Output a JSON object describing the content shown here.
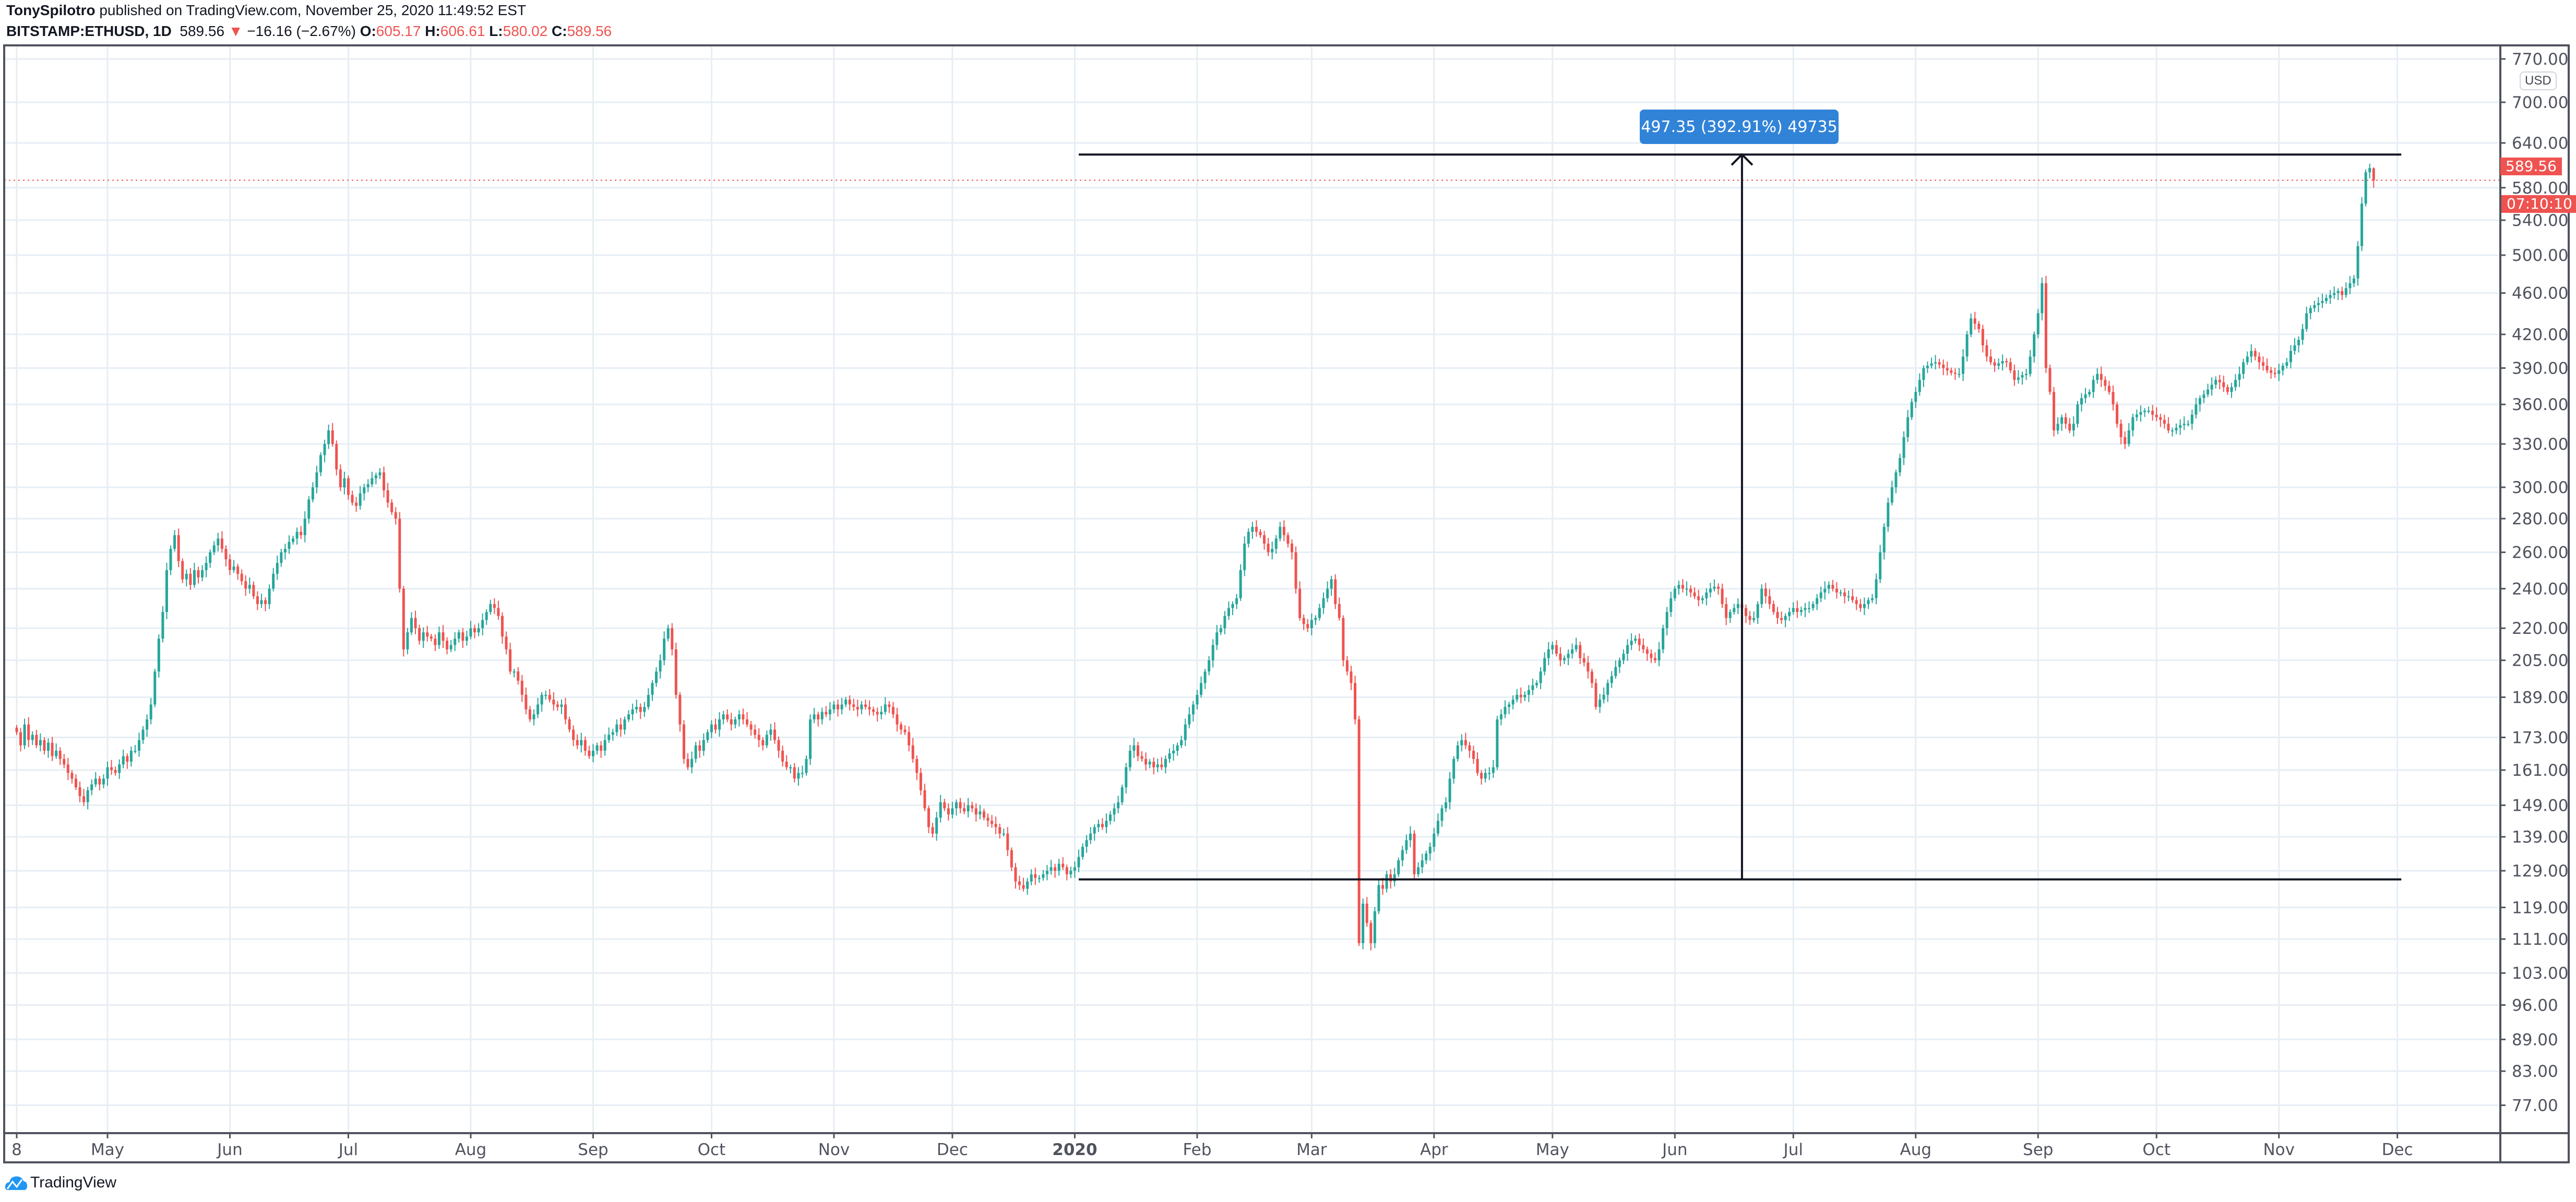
{
  "header": {
    "author": "TonySpilotro",
    "published_text": "published on TradingView.com, November 25, 2020 11:49:52 EST",
    "symbol": "BITSTAMP:ETHUSD, 1D",
    "last_price": "589.56",
    "change": "−16.16 (−2.67%)",
    "o_label": "O:",
    "o_value": "605.17",
    "h_label": "H:",
    "h_value": "606.61",
    "l_label": "L:",
    "l_value": "580.02",
    "c_label": "C:",
    "c_value": "589.56",
    "down_icon": "triangle-down-icon"
  },
  "price_axis": {
    "currency_badge": "USD",
    "last_price_tag": "589.56",
    "countdown_tag": "07:10:10"
  },
  "measure": {
    "label": "497.35 (392.91%) 49735",
    "from_price": 126.58,
    "to_price": 623.93,
    "start_date": "2020-01-02",
    "end_date": "2020-12-02",
    "arrow_date": "2020-06-18"
  },
  "footer": {
    "brand": "TradingView"
  },
  "colors": {
    "up": "#26a69a",
    "down": "#ef5350",
    "measure_label": "#3183d8",
    "grid": "#e6eef5",
    "axis": "#50535e"
  },
  "chart_data": {
    "type": "candlestick",
    "symbol": "BITSTAMP:ETHUSD",
    "interval": "1D",
    "y_scale": "log",
    "ylim": [
      72,
      790
    ],
    "grid": true,
    "start_date": "2019-04-08",
    "end_date": "2020-11-25",
    "y_ticks": [
      77,
      83,
      89,
      96,
      103,
      111,
      119,
      129,
      139,
      149,
      161,
      173,
      189,
      205,
      220,
      240,
      260,
      280,
      300,
      330,
      360,
      390,
      420,
      460,
      500,
      540,
      580,
      640,
      700,
      770
    ],
    "x_ticks": [
      {
        "label": "8",
        "date": "2019-04-08"
      },
      {
        "label": "May",
        "date": "2019-05-01"
      },
      {
        "label": "Jun",
        "date": "2019-06-01"
      },
      {
        "label": "Jul",
        "date": "2019-07-01"
      },
      {
        "label": "Aug",
        "date": "2019-08-01"
      },
      {
        "label": "Sep",
        "date": "2019-09-01"
      },
      {
        "label": "Oct",
        "date": "2019-10-01"
      },
      {
        "label": "Nov",
        "date": "2019-11-01"
      },
      {
        "label": "Dec",
        "date": "2019-12-01"
      },
      {
        "label": "2020",
        "date": "2020-01-01"
      },
      {
        "label": "Feb",
        "date": "2020-02-01"
      },
      {
        "label": "Mar",
        "date": "2020-03-01"
      },
      {
        "label": "Apr",
        "date": "2020-04-01"
      },
      {
        "label": "May",
        "date": "2020-05-01"
      },
      {
        "label": "Jun",
        "date": "2020-06-01"
      },
      {
        "label": "Jul",
        "date": "2020-07-01"
      },
      {
        "label": "Aug",
        "date": "2020-08-01"
      },
      {
        "label": "Sep",
        "date": "2020-09-01"
      },
      {
        "label": "Oct",
        "date": "2020-10-01"
      },
      {
        "label": "Nov",
        "date": "2020-11-01"
      },
      {
        "label": "Dec",
        "date": "2020-12-01"
      }
    ],
    "daily_closes": [
      175,
      170,
      178,
      172,
      174,
      170,
      172,
      168,
      171,
      166,
      168,
      165,
      163,
      160,
      158,
      155,
      152,
      150,
      154,
      156,
      158,
      156,
      158,
      162,
      161,
      160,
      163,
      166,
      164,
      168,
      168,
      172,
      176,
      180,
      186,
      200,
      215,
      228,
      250,
      262,
      270,
      255,
      245,
      248,
      242,
      250,
      246,
      250,
      254,
      260,
      264,
      268,
      262,
      256,
      250,
      252,
      248,
      244,
      240,
      242,
      236,
      232,
      234,
      232,
      240,
      248,
      254,
      260,
      262,
      266,
      268,
      272,
      270,
      280,
      292,
      300,
      310,
      322,
      330,
      340,
      330,
      312,
      300,
      306,
      295,
      290,
      288,
      296,
      300,
      302,
      306,
      308,
      310,
      298,
      290,
      284,
      280,
      240,
      210,
      218,
      225,
      220,
      214,
      218,
      216,
      215,
      212,
      218,
      214,
      210,
      212,
      215,
      218,
      214,
      216,
      220,
      218,
      220,
      224,
      228,
      232,
      230,
      226,
      216,
      210,
      200,
      200,
      196,
      190,
      184,
      180,
      182,
      186,
      190,
      190,
      188,
      186,
      185,
      186,
      180,
      176,
      172,
      170,
      172,
      168,
      166,
      168,
      170,
      168,
      172,
      174,
      175,
      178,
      176,
      180,
      182,
      184,
      185,
      183,
      185,
      190,
      195,
      200,
      205,
      215,
      220,
      210,
      190,
      178,
      165,
      162,
      165,
      170,
      168,
      172,
      175,
      178,
      176,
      180,
      182,
      180,
      178,
      180,
      182,
      180,
      178,
      176,
      174,
      172,
      170,
      174,
      176,
      172,
      168,
      164,
      162,
      162,
      158,
      160,
      160,
      165,
      180,
      182,
      180,
      183,
      182,
      184,
      186,
      184,
      186,
      188,
      186,
      185,
      184,
      186,
      185,
      184,
      183,
      182,
      183,
      186,
      185,
      182,
      178,
      176,
      175,
      170,
      165,
      160,
      154,
      148,
      142,
      140,
      145,
      150,
      148,
      146,
      148,
      150,
      148,
      147,
      149,
      148,
      146,
      147,
      145,
      144,
      143,
      142,
      140,
      140,
      135,
      130,
      126,
      125,
      124,
      126,
      128,
      127,
      127,
      128,
      129,
      130,
      129,
      131,
      130,
      128,
      129,
      130,
      133,
      136,
      138,
      140,
      142,
      143,
      142,
      144,
      146,
      148,
      150,
      155,
      162,
      168,
      170,
      166,
      165,
      163,
      164,
      162,
      163,
      162,
      165,
      167,
      168,
      170,
      172,
      178,
      182,
      186,
      190,
      195,
      200,
      205,
      212,
      218,
      220,
      226,
      230,
      232,
      235,
      250,
      265,
      272,
      275,
      272,
      270,
      265,
      260,
      262,
      268,
      275,
      270,
      265,
      260,
      240,
      225,
      222,
      220,
      224,
      225,
      230,
      235,
      240,
      245,
      232,
      225,
      205,
      200,
      195,
      180,
      110,
      120,
      115,
      110,
      118,
      125,
      124,
      128,
      126,
      128,
      132,
      135,
      138,
      140,
      128,
      130,
      132,
      134,
      136,
      140,
      144,
      148,
      150,
      158,
      165,
      170,
      172,
      170,
      168,
      165,
      160,
      158,
      160,
      160,
      162,
      180,
      182,
      185,
      186,
      188,
      190,
      189,
      190,
      192,
      194,
      195,
      200,
      206,
      210,
      212,
      208,
      205,
      206,
      208,
      210,
      212,
      206,
      204,
      200,
      195,
      185,
      188,
      190,
      195,
      198,
      202,
      205,
      208,
      212,
      214,
      215,
      212,
      210,
      208,
      206,
      205,
      210,
      220,
      228,
      235,
      240,
      242,
      240,
      240,
      238,
      236,
      234,
      235,
      238,
      240,
      241,
      240,
      232,
      225,
      228,
      230,
      232,
      230,
      226,
      224,
      225,
      232,
      240,
      236,
      232,
      228,
      225,
      224,
      226,
      228,
      230,
      228,
      229,
      230,
      230,
      232,
      235,
      238,
      240,
      242,
      240,
      238,
      238,
      236,
      236,
      234,
      232,
      230,
      232,
      234,
      235,
      245,
      260,
      275,
      290,
      300,
      310,
      320,
      335,
      350,
      362,
      370,
      380,
      390,
      392,
      394,
      395,
      393,
      390,
      388,
      386,
      385,
      385,
      400,
      420,
      435,
      430,
      425,
      410,
      400,
      395,
      392,
      394,
      396,
      395,
      388,
      380,
      382,
      384,
      385,
      400,
      420,
      440,
      470,
      390,
      370,
      340,
      345,
      350,
      345,
      340,
      345,
      360,
      365,
      368,
      370,
      380,
      385,
      380,
      375,
      370,
      360,
      345,
      335,
      330,
      340,
      350,
      352,
      354,
      355,
      355,
      352,
      350,
      348,
      345,
      340,
      340,
      342,
      344,
      345,
      345,
      352,
      360,
      365,
      368,
      372,
      376,
      380,
      378,
      374,
      370,
      374,
      380,
      385,
      395,
      400,
      405,
      400,
      395,
      392,
      388,
      386,
      385,
      388,
      392,
      395,
      405,
      410,
      415,
      425,
      440,
      445,
      448,
      450,
      452,
      455,
      458,
      460,
      462,
      458,
      465,
      470,
      475,
      510,
      560,
      600,
      605.72,
      589.56
    ]
  }
}
